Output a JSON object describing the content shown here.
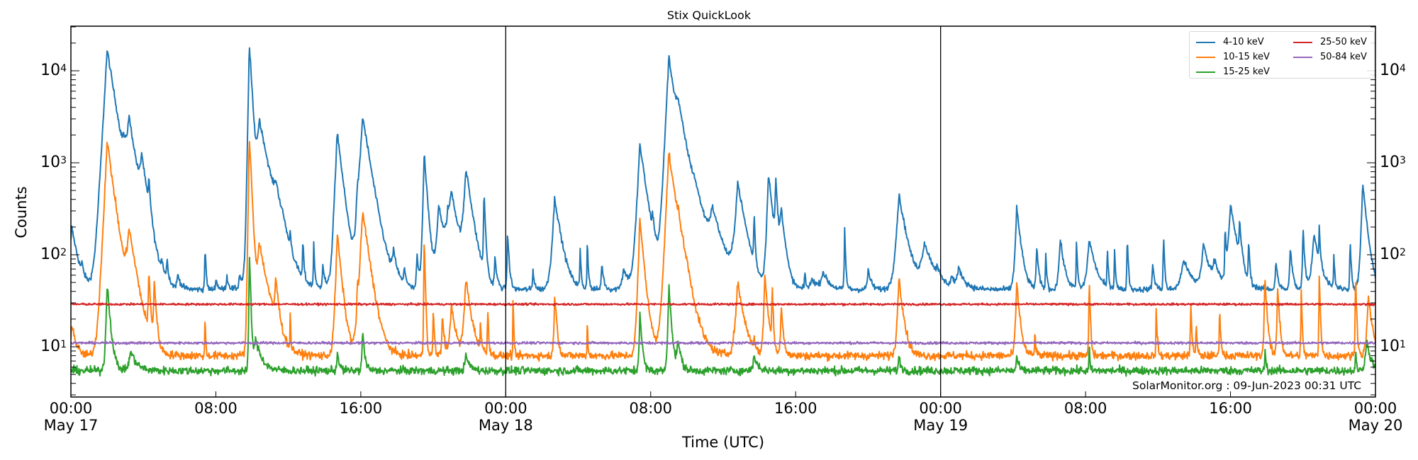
{
  "chart_data": {
    "type": "line",
    "title": "Stix QuickLook",
    "xlabel": "Time (UTC)",
    "ylabel": "Counts",
    "yscale": "log",
    "ylim": [
      2.85,
      30500
    ],
    "xlim_hours": [
      0,
      72
    ],
    "x_ticks": [
      {
        "hour": 0,
        "label": "00:00",
        "date": "May 17"
      },
      {
        "hour": 8,
        "label": "08:00",
        "date": ""
      },
      {
        "hour": 16,
        "label": "16:00",
        "date": ""
      },
      {
        "hour": 24,
        "label": "00:00",
        "date": "May 18"
      },
      {
        "hour": 32,
        "label": "08:00",
        "date": ""
      },
      {
        "hour": 40,
        "label": "16:00",
        "date": ""
      },
      {
        "hour": 48,
        "label": "00:00",
        "date": "May 19"
      },
      {
        "hour": 56,
        "label": "08:00",
        "date": ""
      },
      {
        "hour": 64,
        "label": "16:00",
        "date": ""
      },
      {
        "hour": 72,
        "label": "00:00",
        "date": "May 20"
      }
    ],
    "y_ticks": [
      {
        "value": 10,
        "base": "10",
        "exp": "1"
      },
      {
        "value": 100,
        "base": "10",
        "exp": "2"
      },
      {
        "value": 1000,
        "base": "10",
        "exp": "3"
      },
      {
        "value": 10000,
        "base": "10",
        "exp": "4"
      }
    ],
    "day_separators_hours": [
      24,
      48
    ],
    "grid": false,
    "legend_position": "upper right",
    "series": [
      {
        "name": "4-10 keV",
        "color": "#1f77b4",
        "baseline": 42,
        "noise": 0.07,
        "peaks": [
          [
            0.05,
            200,
            0.3
          ],
          [
            0.6,
            60,
            0.1
          ],
          [
            2.0,
            17000,
            0.35
          ],
          [
            2.9,
            600,
            0.2
          ],
          [
            3.2,
            2600,
            0.35
          ],
          [
            3.9,
            900,
            0.25
          ],
          [
            4.3,
            420,
            0.08
          ],
          [
            5.0,
            65,
            0.15
          ],
          [
            5.3,
            80,
            0.08
          ],
          [
            5.9,
            60,
            0.15
          ],
          [
            7.4,
            130,
            0.05
          ],
          [
            8.0,
            55,
            0.1
          ],
          [
            8.6,
            60,
            0.1
          ],
          [
            9.3,
            60,
            0.1
          ],
          [
            10.0,
            120,
            0.08
          ],
          [
            10.6,
            130,
            0.06
          ],
          [
            11.7,
            70,
            0.2
          ],
          [
            12.1,
            110,
            0.05
          ],
          [
            9.85,
            20000,
            0.12
          ],
          [
            10.4,
            2800,
            0.45
          ],
          [
            11.3,
            300,
            0.3
          ],
          [
            12.8,
            140,
            0.05
          ],
          [
            13.4,
            140,
            0.05
          ],
          [
            13.9,
            80,
            0.1
          ],
          [
            14.5,
            70,
            0.1
          ],
          [
            14.7,
            2200,
            0.25
          ],
          [
            16.1,
            3200,
            0.35
          ],
          [
            15.8,
            300,
            0.1
          ],
          [
            17.8,
            90,
            0.2
          ],
          [
            18.4,
            70,
            0.1
          ],
          [
            19.1,
            100,
            0.1
          ],
          [
            19.5,
            1300,
            0.15
          ],
          [
            20.3,
            350,
            0.3
          ],
          [
            20.8,
            200,
            0.3
          ],
          [
            21.0,
            400,
            0.35
          ],
          [
            21.9,
            120,
            0.1
          ],
          [
            21.8,
            800,
            0.3
          ],
          [
            22.8,
            470,
            0.07
          ],
          [
            23.4,
            90,
            0.1
          ],
          [
            24.1,
            180,
            0.08
          ],
          [
            25.5,
            70,
            0.08
          ],
          [
            26.7,
            420,
            0.3
          ],
          [
            28.1,
            120,
            0.05
          ],
          [
            28.5,
            150,
            0.05
          ],
          [
            29.3,
            80,
            0.1
          ],
          [
            30.5,
            70,
            0.3
          ],
          [
            31.4,
            1600,
            0.3
          ],
          [
            32.1,
            150,
            0.1
          ],
          [
            32.8,
            150,
            0.1
          ],
          [
            33.0,
            14000,
            0.3
          ],
          [
            33.5,
            2500,
            0.5
          ],
          [
            34.4,
            200,
            0.6
          ],
          [
            35.4,
            250,
            0.5
          ],
          [
            36.8,
            600,
            0.35
          ],
          [
            37.7,
            280,
            0.05
          ],
          [
            38.5,
            800,
            0.2
          ],
          [
            38.9,
            600,
            0.1
          ],
          [
            39.2,
            300,
            0.2
          ],
          [
            40.5,
            70,
            0.05
          ],
          [
            42.7,
            200,
            0.05
          ],
          [
            40.9,
            55,
            0.3
          ],
          [
            41.5,
            65,
            0.3
          ],
          [
            44.0,
            70,
            0.15
          ],
          [
            45.7,
            450,
            0.35
          ],
          [
            47.1,
            130,
            0.5
          ],
          [
            47.8,
            60,
            0.1
          ],
          [
            48.6,
            55,
            0.15
          ],
          [
            49.0,
            70,
            0.3
          ],
          [
            52.2,
            330,
            0.2
          ],
          [
            53.3,
            120,
            0.1
          ],
          [
            53.8,
            110,
            0.05
          ],
          [
            54.6,
            150,
            0.2
          ],
          [
            55.5,
            150,
            0.05
          ],
          [
            56.2,
            150,
            0.3
          ],
          [
            57.2,
            120,
            0.05
          ],
          [
            57.6,
            120,
            0.05
          ],
          [
            58.3,
            180,
            0.05
          ],
          [
            59.7,
            80,
            0.1
          ],
          [
            60.3,
            180,
            0.05
          ],
          [
            61.4,
            90,
            0.4
          ],
          [
            62.5,
            130,
            0.3
          ],
          [
            63.1,
            80,
            0.3
          ],
          [
            63.7,
            200,
            0.05
          ],
          [
            64.0,
            350,
            0.3
          ],
          [
            64.5,
            180,
            0.1
          ],
          [
            65.0,
            150,
            0.05
          ],
          [
            66.5,
            90,
            0.1
          ],
          [
            67.3,
            130,
            0.1
          ],
          [
            68.0,
            200,
            0.08
          ],
          [
            68.6,
            170,
            0.3
          ],
          [
            68.9,
            170,
            0.05
          ],
          [
            69.7,
            100,
            0.05
          ],
          [
            70.6,
            170,
            0.05
          ],
          [
            71.3,
            600,
            0.2
          ]
        ]
      },
      {
        "name": "10-15 keV",
        "color": "#ff7f0e",
        "baseline": 8,
        "noise": 0.1,
        "peaks": [
          [
            0.05,
            18,
            0.2
          ],
          [
            2.0,
            1700,
            0.3
          ],
          [
            3.2,
            170,
            0.35
          ],
          [
            4.3,
            60,
            0.08
          ],
          [
            4.6,
            50,
            0.1
          ],
          [
            7.4,
            25,
            0.03
          ],
          [
            9.85,
            2000,
            0.1
          ],
          [
            10.4,
            130,
            0.4
          ],
          [
            11.3,
            45,
            0.15
          ],
          [
            12.1,
            22,
            0.03
          ],
          [
            14.7,
            170,
            0.2
          ],
          [
            16.1,
            300,
            0.3
          ],
          [
            15.8,
            40,
            0.05
          ],
          [
            19.5,
            170,
            0.05
          ],
          [
            20.0,
            28,
            0.05
          ],
          [
            20.5,
            22,
            0.1
          ],
          [
            21.0,
            30,
            0.2
          ],
          [
            21.8,
            55,
            0.25
          ],
          [
            22.6,
            18,
            0.05
          ],
          [
            23.0,
            28,
            0.05
          ],
          [
            24.4,
            40,
            0.03
          ],
          [
            26.7,
            40,
            0.1
          ],
          [
            28.5,
            22,
            0.03
          ],
          [
            31.4,
            240,
            0.2
          ],
          [
            33.0,
            1300,
            0.3
          ],
          [
            33.5,
            100,
            0.3
          ],
          [
            34.0,
            25,
            0.5
          ],
          [
            36.8,
            50,
            0.3
          ],
          [
            37.7,
            15,
            0.03
          ],
          [
            38.3,
            60,
            0.15
          ],
          [
            38.7,
            50,
            0.05
          ],
          [
            39.2,
            30,
            0.1
          ],
          [
            45.7,
            60,
            0.2
          ],
          [
            52.2,
            50,
            0.15
          ],
          [
            53.2,
            15,
            0.05
          ],
          [
            56.2,
            60,
            0.05
          ],
          [
            59.9,
            25,
            0.05
          ],
          [
            61.8,
            35,
            0.05
          ],
          [
            65.9,
            60,
            0.1
          ],
          [
            66.6,
            45,
            0.1
          ],
          [
            68.9,
            65,
            0.05
          ],
          [
            70.9,
            70,
            0.05
          ],
          [
            71.6,
            35,
            0.2
          ],
          [
            67.9,
            40,
            0.05
          ],
          [
            63.4,
            30,
            0.05
          ],
          [
            62.1,
            18,
            0.05
          ]
        ]
      },
      {
        "name": "15-25 keV",
        "color": "#2ca02c",
        "baseline": 5.5,
        "noise": 0.1,
        "peaks": [
          [
            2.0,
            50,
            0.15
          ],
          [
            3.3,
            9,
            0.3
          ],
          [
            9.85,
            110,
            0.06
          ],
          [
            10.2,
            12,
            0.3
          ],
          [
            14.7,
            9,
            0.1
          ],
          [
            16.1,
            15,
            0.1
          ],
          [
            21.8,
            8,
            0.2
          ],
          [
            31.4,
            25,
            0.1
          ],
          [
            33.0,
            50,
            0.12
          ],
          [
            33.5,
            12,
            0.15
          ],
          [
            37.7,
            8,
            0.2
          ],
          [
            45.7,
            8,
            0.1
          ],
          [
            52.2,
            8,
            0.1
          ],
          [
            56.2,
            12,
            0.03
          ],
          [
            65.9,
            10,
            0.05
          ],
          [
            71.5,
            12,
            0.2
          ],
          [
            70.9,
            9,
            0.05
          ]
        ]
      },
      {
        "name": "25-50 keV",
        "color": "#d62728",
        "baseline": 29,
        "noise": 0.025,
        "peaks": []
      },
      {
        "name": "50-84 keV",
        "color": "#9467bd",
        "baseline": 11,
        "noise": 0.03,
        "peaks": []
      }
    ]
  },
  "annotation": "SolarMonitor.org : 09-Jun-2023 00:31 UTC"
}
